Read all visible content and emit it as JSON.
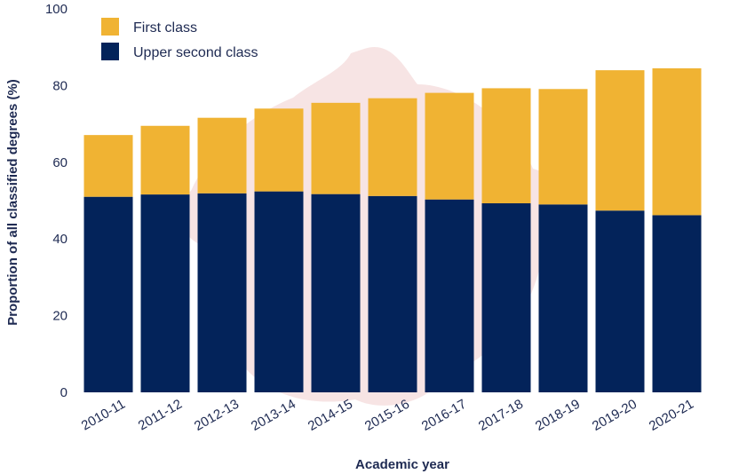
{
  "chart_data": {
    "type": "bar",
    "stacked": true,
    "categories": [
      "2010-11",
      "2011-12",
      "2012-13",
      "2013-14",
      "2014-15",
      "2015-16",
      "2016-17",
      "2017-18",
      "2018-19",
      "2019-20",
      "2020-21"
    ],
    "series": [
      {
        "name": "Upper second class",
        "color": "#03235a",
        "values": [
          51.0,
          51.6,
          51.9,
          52.4,
          51.7,
          51.2,
          50.3,
          49.3,
          49.0,
          47.4,
          46.2
        ]
      },
      {
        "name": "First class",
        "color": "#f0b333",
        "values": [
          16.1,
          17.9,
          19.7,
          21.6,
          23.8,
          25.5,
          27.8,
          30.0,
          30.1,
          36.6,
          38.3
        ]
      }
    ],
    "ylim": [
      0,
      100
    ],
    "yticks": [
      0,
      20,
      40,
      60,
      80,
      100
    ],
    "xlabel": "Academic year",
    "ylabel": "Proportion of all classified degrees (%)",
    "legend_position": "top-left",
    "grid": false,
    "legend": [
      {
        "label": "First class",
        "color": "#f0b333"
      },
      {
        "label": "Upper second class",
        "color": "#03235a"
      }
    ]
  }
}
